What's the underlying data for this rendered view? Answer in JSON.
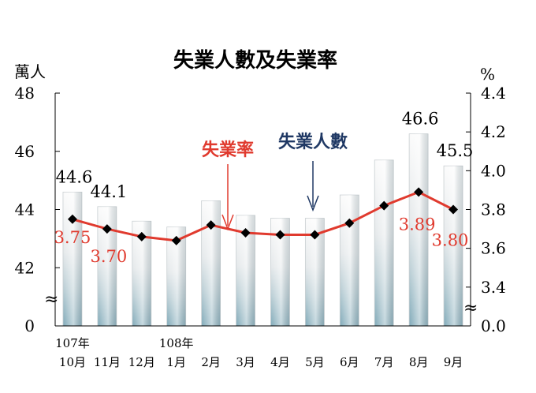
{
  "chart_data": {
    "type": "bar+line",
    "title": "失業人數及失業率",
    "left_axis": {
      "label": "萬人",
      "ticks": [
        "48",
        "46",
        "44",
        "42",
        "0"
      ],
      "tick_values": [
        48,
        46,
        44,
        42,
        40
      ],
      "ylim": [
        40,
        48
      ]
    },
    "right_axis": {
      "label": "%",
      "ticks": [
        "4.4",
        "4.2",
        "4.0",
        "3.8",
        "3.6",
        "3.4",
        "0.0"
      ],
      "tick_values": [
        4.4,
        4.2,
        4.0,
        3.8,
        3.6,
        3.4,
        3.2
      ],
      "ylim": [
        3.2,
        4.4
      ]
    },
    "year_labels": [
      {
        "index": 0,
        "text": "107年"
      },
      {
        "index": 3,
        "text": "108年"
      }
    ],
    "categories": [
      "10月",
      "11月",
      "12月",
      "1月",
      "2月",
      "3月",
      "4月",
      "5月",
      "6月",
      "7月",
      "8月",
      "9月"
    ],
    "series": [
      {
        "name": "失業人數",
        "axis": "left",
        "type": "bar",
        "color": "#1f3864",
        "values": [
          44.6,
          44.1,
          43.6,
          43.4,
          44.3,
          43.8,
          43.7,
          43.7,
          44.5,
          45.7,
          46.6,
          45.5
        ]
      },
      {
        "name": "失業率",
        "axis": "right",
        "type": "line",
        "color": "#e03a2e",
        "values": [
          3.75,
          3.7,
          3.66,
          3.64,
          3.72,
          3.68,
          3.67,
          3.67,
          3.73,
          3.82,
          3.89,
          3.8
        ]
      }
    ],
    "bar_labels": [
      {
        "index": 0,
        "text": "44.6"
      },
      {
        "index": 1,
        "text": "44.1"
      },
      {
        "index": 10,
        "text": "46.6"
      },
      {
        "index": 11,
        "text": "45.5"
      }
    ],
    "line_labels": [
      {
        "index": 0,
        "text": "3.75"
      },
      {
        "index": 1,
        "text": "3.70"
      },
      {
        "index": 10,
        "text": "3.89"
      },
      {
        "index": 11,
        "text": "3.80"
      }
    ],
    "annotations": {
      "rate_label": "失業率",
      "count_label": "失業人數"
    },
    "colors": {
      "rate": "#e03a2e",
      "count": "#1f3864",
      "marker": "#000000"
    }
  }
}
